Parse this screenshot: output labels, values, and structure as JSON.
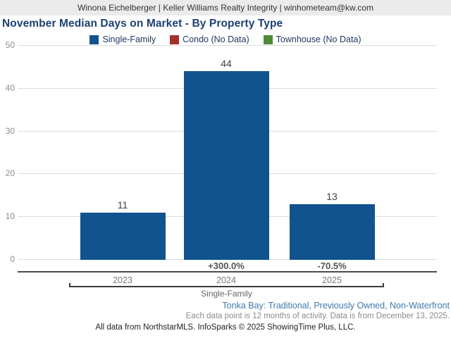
{
  "header": {
    "text": "Winona Eichelberger | Keller Williams Realty Integrity | winhometeam@kw.com"
  },
  "title": "November Median Days on Market - By Property Type",
  "legend": {
    "items": [
      {
        "label": "Single-Family",
        "color": "#10538e"
      },
      {
        "label": "Condo (No Data)",
        "color": "#a5302c"
      },
      {
        "label": "Townhouse (No Data)",
        "color": "#4e8a39"
      }
    ]
  },
  "chart_data": {
    "type": "bar",
    "title": "November Median Days on Market - By Property Type",
    "categories": [
      "2023",
      "2024",
      "2025"
    ],
    "series": [
      {
        "name": "Single-Family",
        "values": [
          11,
          44,
          13
        ],
        "color": "#10538e"
      },
      {
        "name": "Condo",
        "values": [
          null,
          null,
          null
        ],
        "note": "No Data"
      },
      {
        "name": "Townhouse",
        "values": [
          null,
          null,
          null
        ],
        "note": "No Data"
      }
    ],
    "value_labels": [
      "11",
      "44",
      "13"
    ],
    "pct_change": [
      "",
      "+300.0%",
      "-70.5%"
    ],
    "group_label": "Single-Family",
    "ylabel": "",
    "xlabel": "",
    "ylim": [
      0,
      50
    ],
    "yticks": [
      0,
      10,
      20,
      30,
      40,
      50
    ],
    "grid": "horizontal",
    "legend_position": "top"
  },
  "footer": {
    "filters": "Tonka Bay: Traditional, Previously Owned, Non-Waterfront",
    "note": "Each data point is 12 months of activity. Data is from December 13, 2025.",
    "attribution": "All data from NorthstarMLS. InfoSparks © 2025 ShowingTime Plus, LLC."
  }
}
